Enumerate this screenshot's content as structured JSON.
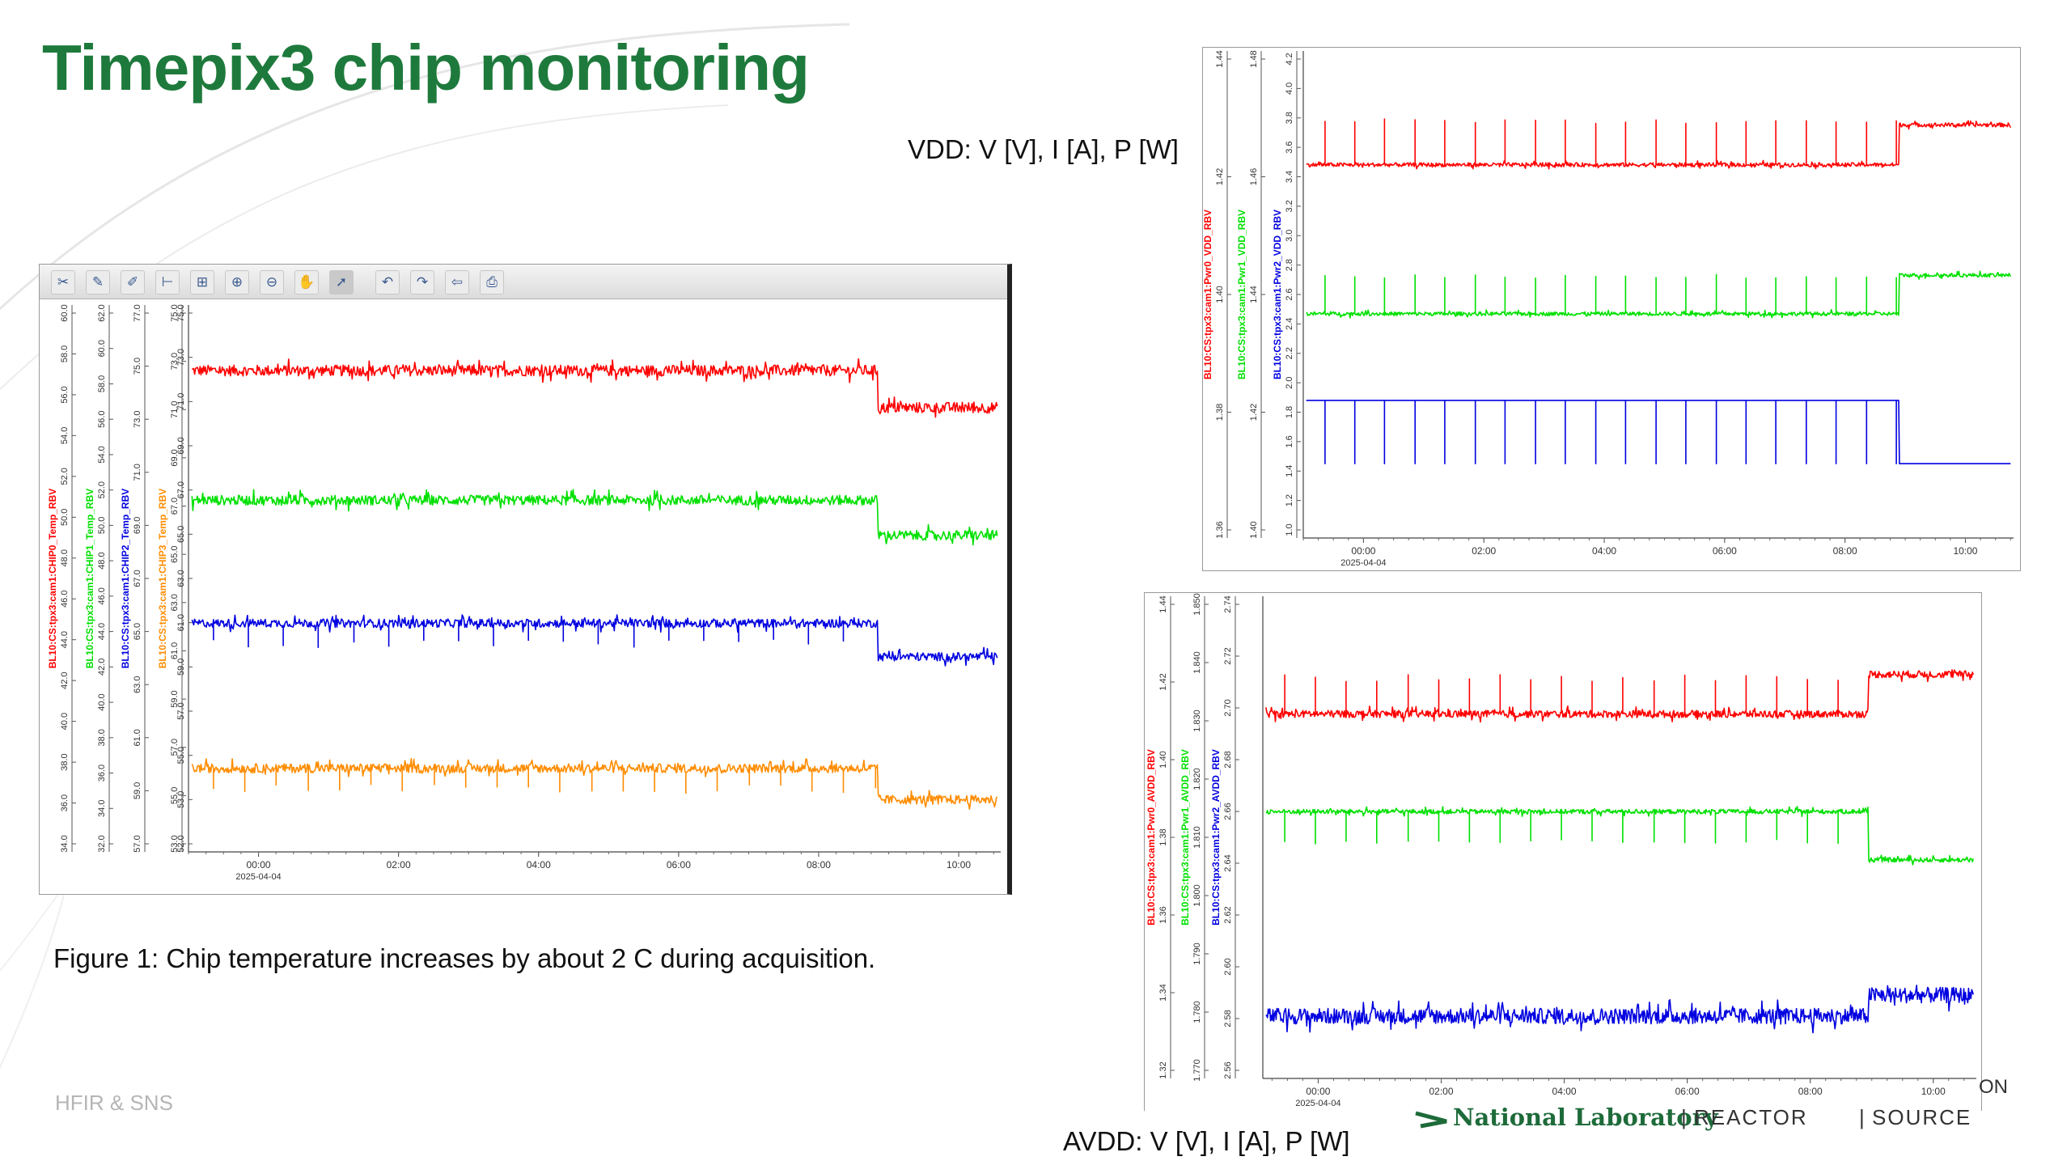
{
  "slide": {
    "title": "Timepix3 chip monitoring",
    "figure_caption": "Figure 1: Chip temperature increases by about 2 C during acquisition.",
    "vdd_caption": "VDD: V [V], I [A], P [W]",
    "avdd_caption": "AVDD: V [V], I [A], P [W]",
    "footer_left": "HFIR & SNS",
    "logo_text": "National Laboratory",
    "logo_reactor": "REACTOR",
    "logo_source": "SOURCE",
    "logo_fragment": "ON",
    "colors": {
      "title": "#1e7a3c",
      "red": "#ff0000",
      "green": "#00e000",
      "blue": "#0000e0",
      "orange": "#ff8c00"
    }
  },
  "toolbar_icons": [
    "wrench-icon",
    "edit-axis-icon",
    "pen-icon",
    "axis-icon",
    "zoom-box-icon",
    "zoom-in-icon",
    "zoom-out-icon",
    "pan-hand-icon",
    "pointer-icon",
    "undo-icon",
    "redo-icon",
    "back-arrow-icon",
    "print-icon"
  ],
  "chart_data": [
    {
      "id": "temperature",
      "type": "line",
      "x_ticks": [
        "00:00",
        "02:00",
        "04:00",
        "06:00",
        "08:00",
        "10:00"
      ],
      "x_date": "2025-04-04",
      "x_range_hours": [
        -1.0,
        10.6
      ],
      "series": [
        {
          "name": "BL10:CS:tpx3:cam1:CHIP0_Temp_RBV",
          "color": "#ff0000",
          "ticks": [
            "34.0",
            "36.0",
            "38.0",
            "40.0",
            "42.0",
            "44.0",
            "46.0",
            "48.0",
            "50.0",
            "52.0",
            "54.0",
            "56.0",
            "58.0",
            "60.0"
          ],
          "level_before": 74.6,
          "level_after": 72.9,
          "step_hour": 8.85,
          "noise": 0.25,
          "spike_amp": 0.9,
          "spike_dir": -1,
          "spike_every_h": 0
        },
        {
          "name": "BL10:CS:tpx3:cam1:CHIP1_Temp_RBV",
          "color": "#00e000",
          "ticks": [
            "32.0",
            "34.0",
            "36.0",
            "38.0",
            "40.0",
            "42.0",
            "44.0",
            "46.0",
            "48.0",
            "50.0",
            "52.0",
            "54.0",
            "56.0",
            "58.0",
            "60.0",
            "62.0"
          ],
          "level_before": 68.0,
          "level_after": 66.2,
          "step_hour": 8.85,
          "noise": 0.25,
          "spike_amp": 0.6,
          "spike_dir": 1,
          "spike_every_h": 0
        },
        {
          "name": "BL10:CS:tpx3:cam1:CHIP2_Temp_RBV",
          "color": "#0000e0",
          "ticks": [
            "57.0",
            "59.0",
            "61.0",
            "63.0",
            "65.0",
            "67.0",
            "69.0",
            "71.0",
            "73.0",
            "75.0",
            "77.0"
          ],
          "level_before": 62.3,
          "level_after": 60.3,
          "step_hour": 8.85,
          "noise": 0.25,
          "spike_amp": 1.2,
          "spike_dir": -1,
          "spike_every_h": 0.5
        },
        {
          "name": "BL10:CS:tpx3:cam1:CHIP3_Temp_RBV",
          "color": "#ff8c00",
          "ticks": [
            "53.0",
            "55.0",
            "57.0",
            "59.0",
            "61.0",
            "63.0",
            "65.0",
            "67.0",
            "69.0",
            "71.0",
            "73.0",
            "75.0"
          ],
          "level_before": 56.0,
          "level_after": 54.6,
          "step_hour": 8.85,
          "noise": 0.2,
          "spike_amp": 0.9,
          "spike_dir": -1,
          "spike_every_h": 0.45
        }
      ],
      "panel_axis_ticks": [
        "52.0",
        "53.0",
        "55.0",
        "57.0",
        "59.0",
        "61.0",
        "63.0",
        "65.0",
        "67.0",
        "69.0",
        "71.0",
        "73.0",
        "75.0"
      ]
    },
    {
      "id": "vdd",
      "type": "line",
      "x_ticks": [
        "00:00",
        "02:00",
        "04:00",
        "06:00",
        "08:00",
        "10:00"
      ],
      "x_date": "2025-04-04",
      "x_range_hours": [
        -1.0,
        10.8
      ],
      "series": [
        {
          "name": "BL10:CS:tpx3:cam1:Pwr0_VDD_RBV",
          "color": "#ff0000",
          "unit": "V",
          "ticks": [
            "1.36",
            "1.38",
            "1.40",
            "1.42",
            "1.44"
          ],
          "level_before": 3.4,
          "level_after": 4.0,
          "step_hour": 8.9,
          "noise": 0.03,
          "spike_amp": 0.65,
          "spike_dir": 1,
          "spike_every_h": 0.5
        },
        {
          "name": "BL10:CS:tpx3:cam1:Pwr1_VDD_RBV",
          "color": "#00e000",
          "unit": "A",
          "ticks": [
            "1.40",
            "1.42",
            "1.44",
            "1.46",
            "1.48"
          ],
          "level_before": 2.35,
          "level_after": 2.97,
          "step_hour": 8.9,
          "noise": 0.03,
          "spike_amp": 0.6,
          "spike_dir": 1,
          "spike_every_h": 0.5
        },
        {
          "name": "BL10:CS:tpx3:cam1:Pwr2_VDD_RBV",
          "color": "#0000e0",
          "unit": "W",
          "ticks": [
            "1.0",
            "1.2",
            "1.4",
            "1.6",
            "1.8",
            "2.0",
            "2.2",
            "2.4",
            "2.6",
            "2.8",
            "3.0",
            "3.2",
            "3.4",
            "3.6",
            "3.8",
            "4.0",
            "4.2"
          ],
          "level_before": 2.0,
          "level_after": 1.1,
          "step_hour": 8.9,
          "noise": 0.0,
          "spike_amp": 0.9,
          "spike_dir": -1,
          "spike_every_h": 0.5
        }
      ]
    },
    {
      "id": "avdd",
      "type": "line",
      "x_ticks": [
        "00:00",
        "02:00",
        "04:00",
        "06:00",
        "08:00",
        "10:00"
      ],
      "x_date": "2025-04-04",
      "x_range_hours": [
        -0.9,
        10.7
      ],
      "series": [
        {
          "name": "BL10:CS:tpx3:cam1:Pwr0_AVDD_RBV",
          "color": "#ff0000",
          "unit": "V",
          "ticks": [
            "1.32",
            "1.34",
            "1.36",
            "1.38",
            "1.40",
            "1.42",
            "1.44"
          ],
          "level_before": 2.702,
          "level_after": 2.724,
          "step_hour": 8.95,
          "noise": 0.002,
          "spike_amp": 0.02,
          "spike_dir": 1,
          "spike_every_h": 0.5
        },
        {
          "name": "BL10:CS:tpx3:cam1:Pwr1_AVDD_RBV",
          "color": "#00e000",
          "unit": "A",
          "ticks": [
            "1.770",
            "1.780",
            "1.790",
            "1.800",
            "1.810",
            "1.820",
            "1.830",
            "1.840",
            "1.850"
          ],
          "level_before": 2.664,
          "level_after": 2.632,
          "step_hour": 8.95,
          "noise": 0.0015,
          "spike_amp": 0.02,
          "spike_dir": -1,
          "spike_every_h": 0.5
        },
        {
          "name": "BL10:CS:tpx3:cam1:Pwr2_AVDD_RBV",
          "color": "#0000e0",
          "unit": "W",
          "ticks": [
            "2.56",
            "2.58",
            "2.60",
            "2.62",
            "2.64",
            "2.66",
            "2.68",
            "2.70",
            "2.72",
            "2.74"
          ],
          "level_before": 2.575,
          "level_after": 2.583,
          "step_hour": 8.95,
          "noise": 0.003,
          "spike_amp": 0.008,
          "spike_dir": 1,
          "spike_every_h": 0
        }
      ]
    }
  ]
}
